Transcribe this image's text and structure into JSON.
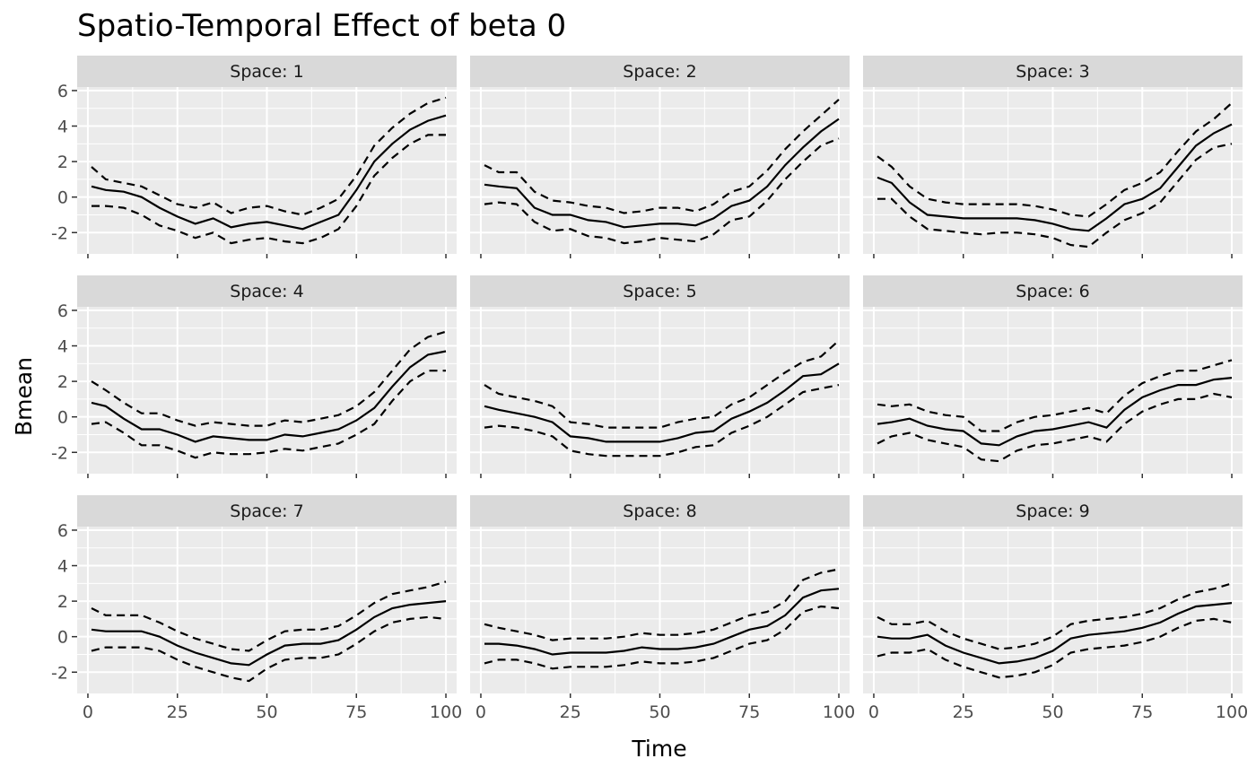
{
  "chart_data": {
    "type": "line",
    "title": "Spatio-Temporal Effect of beta 0",
    "xlabel": "Time",
    "ylabel": "Bmean",
    "xlim": [
      -3,
      103
    ],
    "ylim": [
      -3.2,
      6.2
    ],
    "x_ticks": [
      0,
      25,
      50,
      75,
      100
    ],
    "y_ticks": [
      -2,
      0,
      2,
      4,
      6
    ],
    "grid": true,
    "legend": "none",
    "panels": [
      {
        "label": "Space: 1",
        "x": [
          1,
          5,
          10,
          15,
          20,
          25,
          30,
          35,
          40,
          45,
          50,
          55,
          60,
          65,
          70,
          75,
          80,
          85,
          90,
          95,
          100
        ],
        "mean": [
          0.6,
          0.4,
          0.3,
          0.0,
          -0.6,
          -1.1,
          -1.5,
          -1.2,
          -1.7,
          -1.5,
          -1.4,
          -1.6,
          -1.8,
          -1.4,
          -1.0,
          0.4,
          2.0,
          3.0,
          3.8,
          4.3,
          4.6
        ],
        "upper": [
          1.7,
          1.0,
          0.8,
          0.6,
          0.1,
          -0.4,
          -0.6,
          -0.3,
          -0.9,
          -0.6,
          -0.5,
          -0.8,
          -1.0,
          -0.6,
          -0.1,
          1.2,
          2.9,
          3.9,
          4.7,
          5.3,
          5.6
        ],
        "lower": [
          -0.5,
          -0.5,
          -0.6,
          -1.0,
          -1.6,
          -1.9,
          -2.3,
          -2.0,
          -2.6,
          -2.4,
          -2.3,
          -2.5,
          -2.6,
          -2.3,
          -1.8,
          -0.5,
          1.2,
          2.2,
          3.0,
          3.5,
          3.5
        ]
      },
      {
        "label": "Space: 2",
        "x": [
          1,
          5,
          10,
          15,
          20,
          25,
          30,
          35,
          40,
          45,
          50,
          55,
          60,
          65,
          70,
          75,
          80,
          85,
          90,
          95,
          100
        ],
        "mean": [
          0.7,
          0.6,
          0.5,
          -0.6,
          -1.0,
          -1.0,
          -1.3,
          -1.4,
          -1.7,
          -1.6,
          -1.5,
          -1.5,
          -1.6,
          -1.2,
          -0.5,
          -0.2,
          0.6,
          1.8,
          2.8,
          3.7,
          4.4
        ],
        "upper": [
          1.8,
          1.4,
          1.4,
          0.3,
          -0.2,
          -0.3,
          -0.5,
          -0.6,
          -0.9,
          -0.8,
          -0.6,
          -0.6,
          -0.8,
          -0.4,
          0.3,
          0.6,
          1.5,
          2.7,
          3.7,
          4.6,
          5.5
        ],
        "lower": [
          -0.4,
          -0.3,
          -0.4,
          -1.4,
          -1.9,
          -1.8,
          -2.2,
          -2.3,
          -2.6,
          -2.5,
          -2.3,
          -2.4,
          -2.5,
          -2.1,
          -1.3,
          -1.1,
          -0.2,
          1.0,
          2.0,
          2.9,
          3.3
        ]
      },
      {
        "label": "Space: 3",
        "x": [
          1,
          5,
          10,
          15,
          20,
          25,
          30,
          35,
          40,
          45,
          50,
          55,
          60,
          65,
          70,
          75,
          80,
          85,
          90,
          95,
          100
        ],
        "mean": [
          1.1,
          0.8,
          -0.3,
          -1.0,
          -1.1,
          -1.2,
          -1.2,
          -1.2,
          -1.2,
          -1.3,
          -1.5,
          -1.8,
          -1.9,
          -1.2,
          -0.4,
          -0.1,
          0.5,
          1.7,
          2.9,
          3.6,
          4.1
        ],
        "upper": [
          2.3,
          1.7,
          0.6,
          -0.1,
          -0.3,
          -0.4,
          -0.4,
          -0.4,
          -0.4,
          -0.5,
          -0.7,
          -1.0,
          -1.1,
          -0.4,
          0.4,
          0.8,
          1.4,
          2.6,
          3.7,
          4.4,
          5.3
        ],
        "lower": [
          -0.1,
          -0.1,
          -1.1,
          -1.8,
          -1.9,
          -2.0,
          -2.1,
          -2.0,
          -2.0,
          -2.1,
          -2.3,
          -2.7,
          -2.8,
          -2.0,
          -1.3,
          -0.9,
          -0.3,
          0.9,
          2.1,
          2.8,
          3.0
        ]
      },
      {
        "label": "Space: 4",
        "x": [
          1,
          5,
          10,
          15,
          20,
          25,
          30,
          35,
          40,
          45,
          50,
          55,
          60,
          65,
          70,
          75,
          80,
          85,
          90,
          95,
          100
        ],
        "mean": [
          0.8,
          0.6,
          -0.1,
          -0.7,
          -0.7,
          -1.0,
          -1.4,
          -1.1,
          -1.2,
          -1.3,
          -1.3,
          -1.0,
          -1.1,
          -0.9,
          -0.7,
          -0.2,
          0.5,
          1.7,
          2.8,
          3.5,
          3.7
        ],
        "upper": [
          2.0,
          1.5,
          0.8,
          0.2,
          0.2,
          -0.2,
          -0.5,
          -0.3,
          -0.4,
          -0.5,
          -0.5,
          -0.2,
          -0.3,
          -0.1,
          0.1,
          0.6,
          1.4,
          2.6,
          3.8,
          4.5,
          4.8
        ],
        "lower": [
          -0.4,
          -0.3,
          -0.9,
          -1.6,
          -1.6,
          -1.9,
          -2.3,
          -2.0,
          -2.1,
          -2.1,
          -2.0,
          -1.8,
          -1.9,
          -1.7,
          -1.5,
          -1.0,
          -0.4,
          0.9,
          2.0,
          2.6,
          2.6
        ]
      },
      {
        "label": "Space: 5",
        "x": [
          1,
          5,
          10,
          15,
          20,
          25,
          30,
          35,
          40,
          45,
          50,
          55,
          60,
          65,
          70,
          75,
          80,
          85,
          90,
          95,
          100
        ],
        "mean": [
          0.6,
          0.4,
          0.2,
          0.0,
          -0.3,
          -1.1,
          -1.2,
          -1.4,
          -1.4,
          -1.4,
          -1.4,
          -1.2,
          -0.9,
          -0.8,
          -0.1,
          0.3,
          0.8,
          1.5,
          2.3,
          2.4,
          3.0
        ],
        "upper": [
          1.8,
          1.3,
          1.1,
          0.9,
          0.6,
          -0.3,
          -0.4,
          -0.6,
          -0.6,
          -0.6,
          -0.6,
          -0.3,
          -0.1,
          0.0,
          0.7,
          1.1,
          1.8,
          2.5,
          3.1,
          3.4,
          4.3
        ],
        "lower": [
          -0.6,
          -0.5,
          -0.6,
          -0.8,
          -1.1,
          -1.9,
          -2.1,
          -2.2,
          -2.2,
          -2.2,
          -2.2,
          -2.0,
          -1.7,
          -1.6,
          -0.9,
          -0.5,
          0.0,
          0.7,
          1.4,
          1.6,
          1.8
        ]
      },
      {
        "label": "Space: 6",
        "x": [
          1,
          5,
          10,
          15,
          20,
          25,
          30,
          35,
          40,
          45,
          50,
          55,
          60,
          65,
          70,
          75,
          80,
          85,
          90,
          95,
          100
        ],
        "mean": [
          -0.4,
          -0.3,
          -0.1,
          -0.5,
          -0.7,
          -0.8,
          -1.5,
          -1.6,
          -1.1,
          -0.8,
          -0.7,
          -0.5,
          -0.3,
          -0.6,
          0.4,
          1.1,
          1.5,
          1.8,
          1.8,
          2.1,
          2.2
        ],
        "upper": [
          0.7,
          0.6,
          0.7,
          0.3,
          0.1,
          0.0,
          -0.8,
          -0.8,
          -0.3,
          0.0,
          0.1,
          0.3,
          0.5,
          0.2,
          1.2,
          1.9,
          2.3,
          2.6,
          2.6,
          2.9,
          3.2
        ],
        "lower": [
          -1.5,
          -1.1,
          -0.9,
          -1.3,
          -1.5,
          -1.7,
          -2.4,
          -2.5,
          -1.9,
          -1.6,
          -1.5,
          -1.3,
          -1.1,
          -1.4,
          -0.4,
          0.3,
          0.7,
          1.0,
          1.0,
          1.3,
          1.1
        ]
      },
      {
        "label": "Space: 7",
        "x": [
          1,
          5,
          10,
          15,
          20,
          25,
          30,
          35,
          40,
          45,
          50,
          55,
          60,
          65,
          70,
          75,
          80,
          85,
          90,
          95,
          100
        ],
        "mean": [
          0.4,
          0.3,
          0.3,
          0.3,
          0.0,
          -0.5,
          -0.9,
          -1.2,
          -1.5,
          -1.6,
          -1.0,
          -0.5,
          -0.4,
          -0.4,
          -0.2,
          0.4,
          1.1,
          1.6,
          1.8,
          1.9,
          2.0
        ],
        "upper": [
          1.6,
          1.2,
          1.2,
          1.2,
          0.8,
          0.3,
          -0.1,
          -0.4,
          -0.7,
          -0.8,
          -0.2,
          0.3,
          0.4,
          0.4,
          0.6,
          1.2,
          1.9,
          2.4,
          2.6,
          2.8,
          3.1
        ],
        "lower": [
          -0.8,
          -0.6,
          -0.6,
          -0.6,
          -0.8,
          -1.3,
          -1.7,
          -2.0,
          -2.3,
          -2.5,
          -1.8,
          -1.3,
          -1.2,
          -1.2,
          -1.0,
          -0.4,
          0.3,
          0.8,
          1.0,
          1.1,
          1.0
        ]
      },
      {
        "label": "Space: 8",
        "x": [
          1,
          5,
          10,
          15,
          20,
          25,
          30,
          35,
          40,
          45,
          50,
          55,
          60,
          65,
          70,
          75,
          80,
          85,
          90,
          95,
          100
        ],
        "mean": [
          -0.4,
          -0.4,
          -0.5,
          -0.7,
          -1.0,
          -0.9,
          -0.9,
          -0.9,
          -0.8,
          -0.6,
          -0.7,
          -0.7,
          -0.6,
          -0.4,
          0.0,
          0.4,
          0.6,
          1.2,
          2.2,
          2.6,
          2.7
        ],
        "upper": [
          0.7,
          0.5,
          0.3,
          0.1,
          -0.2,
          -0.1,
          -0.1,
          -0.1,
          0.0,
          0.2,
          0.1,
          0.1,
          0.2,
          0.4,
          0.8,
          1.2,
          1.4,
          2.0,
          3.2,
          3.6,
          3.8
        ],
        "lower": [
          -1.5,
          -1.3,
          -1.3,
          -1.5,
          -1.8,
          -1.7,
          -1.7,
          -1.7,
          -1.6,
          -1.4,
          -1.5,
          -1.5,
          -1.4,
          -1.2,
          -0.8,
          -0.4,
          -0.2,
          0.4,
          1.4,
          1.7,
          1.6
        ]
      },
      {
        "label": "Space: 9",
        "x": [
          1,
          5,
          10,
          15,
          20,
          25,
          30,
          35,
          40,
          45,
          50,
          55,
          60,
          65,
          70,
          75,
          80,
          85,
          90,
          95,
          100
        ],
        "mean": [
          0.0,
          -0.1,
          -0.1,
          0.1,
          -0.5,
          -0.9,
          -1.2,
          -1.5,
          -1.4,
          -1.2,
          -0.8,
          -0.1,
          0.1,
          0.2,
          0.3,
          0.5,
          0.8,
          1.3,
          1.7,
          1.8,
          1.9
        ],
        "upper": [
          1.1,
          0.7,
          0.7,
          0.9,
          0.3,
          -0.1,
          -0.4,
          -0.7,
          -0.6,
          -0.4,
          0.0,
          0.7,
          0.9,
          1.0,
          1.1,
          1.3,
          1.6,
          2.1,
          2.5,
          2.7,
          3.0
        ],
        "lower": [
          -1.1,
          -0.9,
          -0.9,
          -0.7,
          -1.3,
          -1.7,
          -2.0,
          -2.3,
          -2.2,
          -2.0,
          -1.6,
          -0.9,
          -0.7,
          -0.6,
          -0.5,
          -0.3,
          0.0,
          0.5,
          0.9,
          1.0,
          0.8
        ]
      }
    ]
  }
}
